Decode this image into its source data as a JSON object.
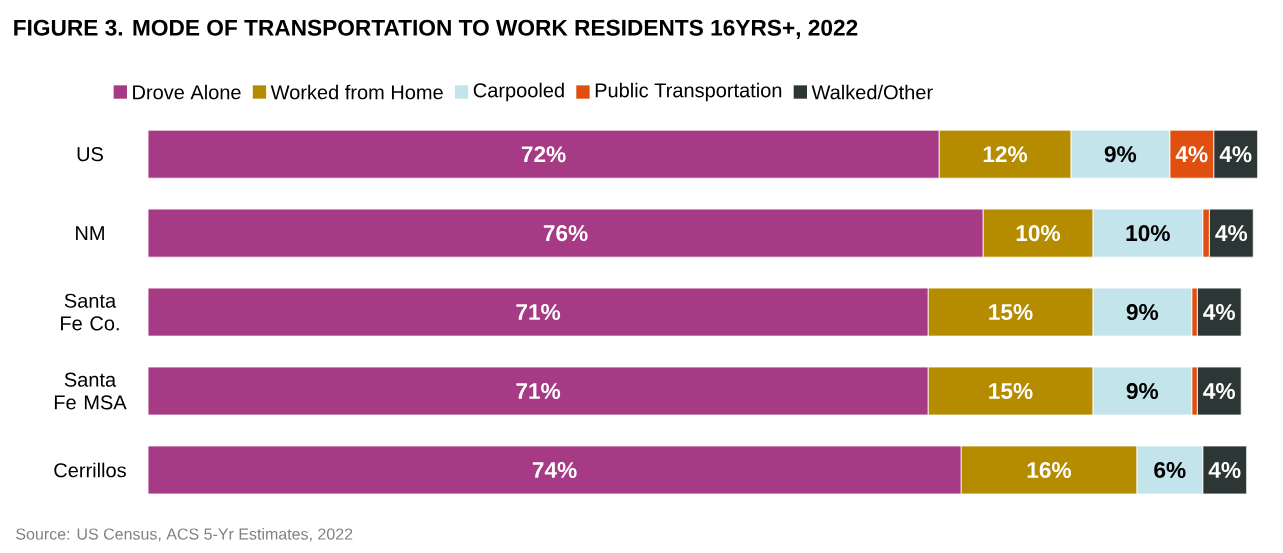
{
  "chart_data": {
    "type": "bar",
    "orientation": "horizontal",
    "stacked": true,
    "title": "FIGURE 3.   MODE OF TRANSPORTATION TO WORK RESIDENTS 16YRS+, 2022",
    "categories": [
      "US",
      "NM",
      "Santa Fe Co.",
      "Santa Fe MSA",
      "Cerrillos"
    ],
    "legend": "top",
    "series": [
      {
        "name": "Drove Alone",
        "color": "#a63a84",
        "values": [
          72,
          76,
          71,
          71,
          74
        ],
        "value_labels": [
          "72%",
          "76%",
          "71%",
          "71%",
          "74%"
        ]
      },
      {
        "name": "Worked from Home",
        "color": "#b58b00",
        "values": [
          12,
          10,
          15,
          15,
          16
        ],
        "value_labels": [
          "12%",
          "10%",
          "15%",
          "15%",
          "16%"
        ]
      },
      {
        "name": "Carpooled",
        "color": "#c3e4ea",
        "values": [
          9,
          10,
          9,
          9,
          6
        ],
        "value_labels": [
          "9%",
          "10%",
          "9%",
          "9%",
          "6%"
        ]
      },
      {
        "name": "Public Transportation",
        "color": "#e04e10",
        "values": [
          4,
          0.6,
          0.5,
          0.5,
          null
        ],
        "value_labels": [
          "4%",
          null,
          null,
          null,
          null
        ]
      },
      {
        "name": "Walked/Other",
        "color": "#2b3635",
        "values": [
          4,
          4,
          4,
          4,
          4
        ],
        "value_labels": [
          "4%",
          "4%",
          "4%",
          "4%",
          "4%"
        ]
      }
    ],
    "annotations": [
      "Source: US Census, ACS 5-Yr Estimates, 2022"
    ]
  }
}
